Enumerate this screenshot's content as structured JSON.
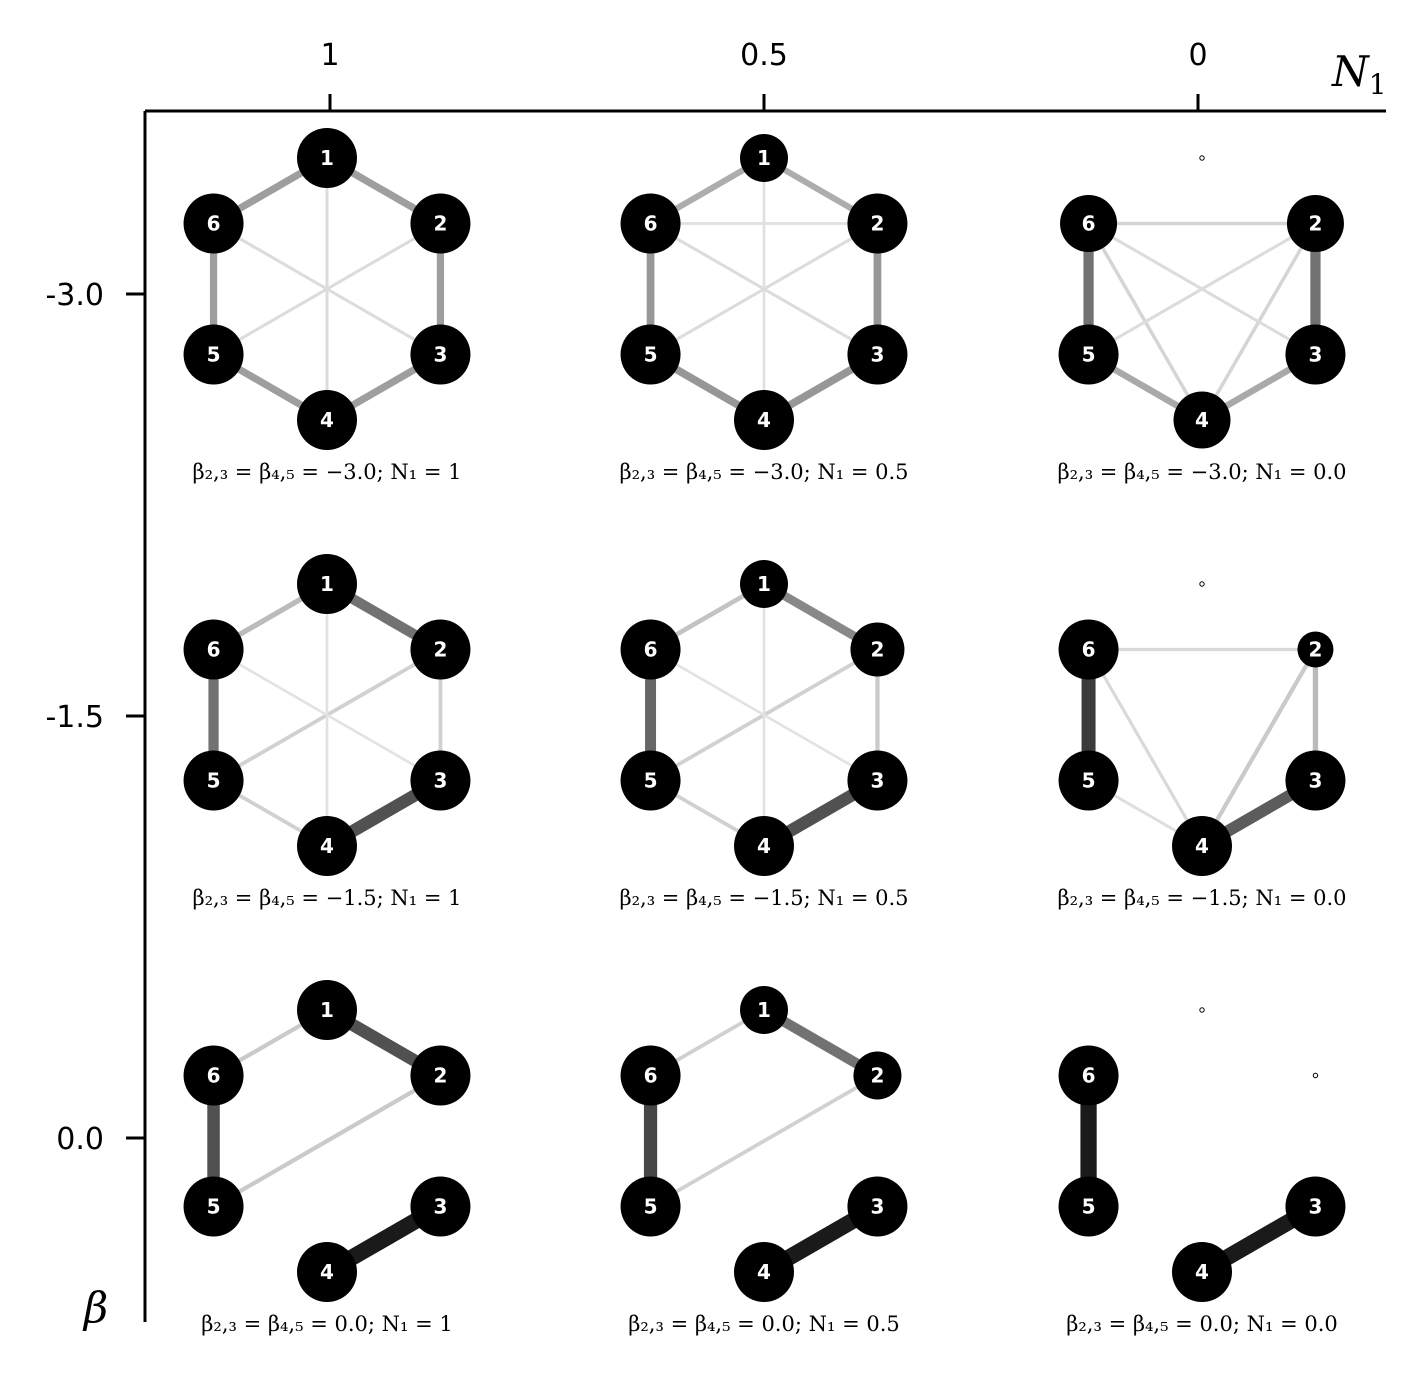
{
  "top_axis": {
    "label_main": "N",
    "label_sub": "1",
    "ticks": [
      "1",
      "0.5",
      "0"
    ]
  },
  "left_axis": {
    "label": "β",
    "ticks": [
      "-3.0",
      "-1.5",
      "0.0"
    ]
  },
  "node_labels": [
    "1",
    "2",
    "3",
    "4",
    "5",
    "6"
  ],
  "columns_N1": [
    1,
    0.5,
    0
  ],
  "rows_beta": [
    -3.0,
    -1.5,
    0.0
  ],
  "panels": [
    {
      "row": 0,
      "col": 0,
      "caption": "β₂,₃ = β₄,₅ = −3.0; N₁ = 1",
      "node_size": {
        "1": 1,
        "2": 1,
        "3": 1,
        "4": 1,
        "5": 1,
        "6": 1
      },
      "edges": [
        {
          "a": 1,
          "b": 2,
          "w": 0.35
        },
        {
          "a": 2,
          "b": 3,
          "w": 0.35
        },
        {
          "a": 3,
          "b": 4,
          "w": 0.35
        },
        {
          "a": 4,
          "b": 5,
          "w": 0.35
        },
        {
          "a": 5,
          "b": 6,
          "w": 0.35
        },
        {
          "a": 6,
          "b": 1,
          "w": 0.35
        },
        {
          "a": 1,
          "b": 4,
          "w": 0.07
        },
        {
          "a": 2,
          "b": 5,
          "w": 0.07
        },
        {
          "a": 3,
          "b": 6,
          "w": 0.07
        }
      ]
    },
    {
      "row": 0,
      "col": 1,
      "caption": "β₂,₃ = β₄,₅ = −3.0; N₁ = 0.5",
      "node_size": {
        "1": 0.8,
        "2": 1,
        "3": 1,
        "4": 1,
        "5": 1,
        "6": 1
      },
      "edges": [
        {
          "a": 1,
          "b": 2,
          "w": 0.28
        },
        {
          "a": 2,
          "b": 3,
          "w": 0.38
        },
        {
          "a": 3,
          "b": 4,
          "w": 0.38
        },
        {
          "a": 4,
          "b": 5,
          "w": 0.38
        },
        {
          "a": 5,
          "b": 6,
          "w": 0.38
        },
        {
          "a": 6,
          "b": 1,
          "w": 0.28
        },
        {
          "a": 2,
          "b": 6,
          "w": 0.05
        },
        {
          "a": 1,
          "b": 4,
          "w": 0.05
        },
        {
          "a": 2,
          "b": 5,
          "w": 0.07
        },
        {
          "a": 3,
          "b": 6,
          "w": 0.07
        }
      ]
    },
    {
      "row": 0,
      "col": 2,
      "caption": "β₂,₃ = β₄,₅ = −3.0; N₁ = 0.0",
      "node_size": {
        "1": 0.05,
        "2": 0.95,
        "3": 1,
        "4": 0.95,
        "5": 1,
        "6": 0.95
      },
      "edges": [
        {
          "a": 2,
          "b": 3,
          "w": 0.55
        },
        {
          "a": 5,
          "b": 6,
          "w": 0.55
        },
        {
          "a": 3,
          "b": 4,
          "w": 0.3
        },
        {
          "a": 4,
          "b": 5,
          "w": 0.3
        },
        {
          "a": 2,
          "b": 6,
          "w": 0.1
        },
        {
          "a": 2,
          "b": 4,
          "w": 0.1
        },
        {
          "a": 4,
          "b": 6,
          "w": 0.1
        },
        {
          "a": 2,
          "b": 5,
          "w": 0.07
        },
        {
          "a": 3,
          "b": 6,
          "w": 0.07
        }
      ]
    },
    {
      "row": 1,
      "col": 0,
      "caption": "β₂,₃ = β₄,₅ = −1.5; N₁ = 1",
      "node_size": {
        "1": 1,
        "2": 1,
        "3": 1,
        "4": 1,
        "5": 1,
        "6": 1
      },
      "edges": [
        {
          "a": 1,
          "b": 2,
          "w": 0.55
        },
        {
          "a": 3,
          "b": 4,
          "w": 0.7
        },
        {
          "a": 5,
          "b": 6,
          "w": 0.55
        },
        {
          "a": 6,
          "b": 1,
          "w": 0.22
        },
        {
          "a": 2,
          "b": 5,
          "w": 0.12
        },
        {
          "a": 4,
          "b": 5,
          "w": 0.12
        },
        {
          "a": 2,
          "b": 3,
          "w": 0.12
        },
        {
          "a": 1,
          "b": 4,
          "w": 0.04
        },
        {
          "a": 3,
          "b": 6,
          "w": 0.04
        }
      ]
    },
    {
      "row": 1,
      "col": 1,
      "caption": "β₂,₃ = β₄,₅ = −1.5; N₁ = 0.5",
      "node_size": {
        "1": 0.8,
        "2": 0.9,
        "3": 1,
        "4": 1,
        "5": 1,
        "6": 1
      },
      "edges": [
        {
          "a": 1,
          "b": 2,
          "w": 0.45
        },
        {
          "a": 3,
          "b": 4,
          "w": 0.7
        },
        {
          "a": 5,
          "b": 6,
          "w": 0.6
        },
        {
          "a": 6,
          "b": 1,
          "w": 0.18
        },
        {
          "a": 2,
          "b": 5,
          "w": 0.12
        },
        {
          "a": 4,
          "b": 5,
          "w": 0.12
        },
        {
          "a": 2,
          "b": 3,
          "w": 0.15
        },
        {
          "a": 1,
          "b": 4,
          "w": 0.04
        },
        {
          "a": 3,
          "b": 6,
          "w": 0.04
        }
      ]
    },
    {
      "row": 1,
      "col": 2,
      "caption": "β₂,₃ = β₄,₅ = −1.5; N₁ = 0.0",
      "node_size": {
        "1": 0.05,
        "2": 0.6,
        "3": 1,
        "4": 1,
        "5": 1,
        "6": 1
      },
      "edges": [
        {
          "a": 5,
          "b": 6,
          "w": 0.8
        },
        {
          "a": 3,
          "b": 4,
          "w": 0.65
        },
        {
          "a": 2,
          "b": 3,
          "w": 0.22
        },
        {
          "a": 2,
          "b": 4,
          "w": 0.15
        },
        {
          "a": 2,
          "b": 6,
          "w": 0.08
        },
        {
          "a": 4,
          "b": 6,
          "w": 0.08
        },
        {
          "a": 4,
          "b": 5,
          "w": 0.06
        }
      ]
    },
    {
      "row": 2,
      "col": 0,
      "caption": "β₂,₃ = β₄,₅ = 0.0; N₁ = 1",
      "node_size": {
        "1": 1,
        "2": 1,
        "3": 1,
        "4": 1,
        "5": 1,
        "6": 1
      },
      "edges": [
        {
          "a": 1,
          "b": 2,
          "w": 0.7
        },
        {
          "a": 3,
          "b": 4,
          "w": 0.95
        },
        {
          "a": 5,
          "b": 6,
          "w": 0.7
        },
        {
          "a": 6,
          "b": 1,
          "w": 0.15
        },
        {
          "a": 2,
          "b": 5,
          "w": 0.15
        }
      ]
    },
    {
      "row": 2,
      "col": 1,
      "caption": "β₂,₃ = β₄,₅ = 0.0; N₁ = 0.5",
      "node_size": {
        "1": 0.8,
        "2": 0.8,
        "3": 1,
        "4": 1,
        "5": 1,
        "6": 1
      },
      "edges": [
        {
          "a": 1,
          "b": 2,
          "w": 0.55
        },
        {
          "a": 3,
          "b": 4,
          "w": 0.95
        },
        {
          "a": 5,
          "b": 6,
          "w": 0.75
        },
        {
          "a": 6,
          "b": 1,
          "w": 0.12
        },
        {
          "a": 2,
          "b": 5,
          "w": 0.12
        }
      ]
    },
    {
      "row": 2,
      "col": 2,
      "caption": "β₂,₃ = β₄,₅ = 0.0; N₁ = 0.0",
      "node_size": {
        "1": 0.05,
        "2": 0.05,
        "3": 1,
        "4": 1,
        "5": 1,
        "6": 1
      },
      "edges": [
        {
          "a": 5,
          "b": 6,
          "w": 0.95
        },
        {
          "a": 3,
          "b": 4,
          "w": 0.95
        }
      ]
    }
  ]
}
